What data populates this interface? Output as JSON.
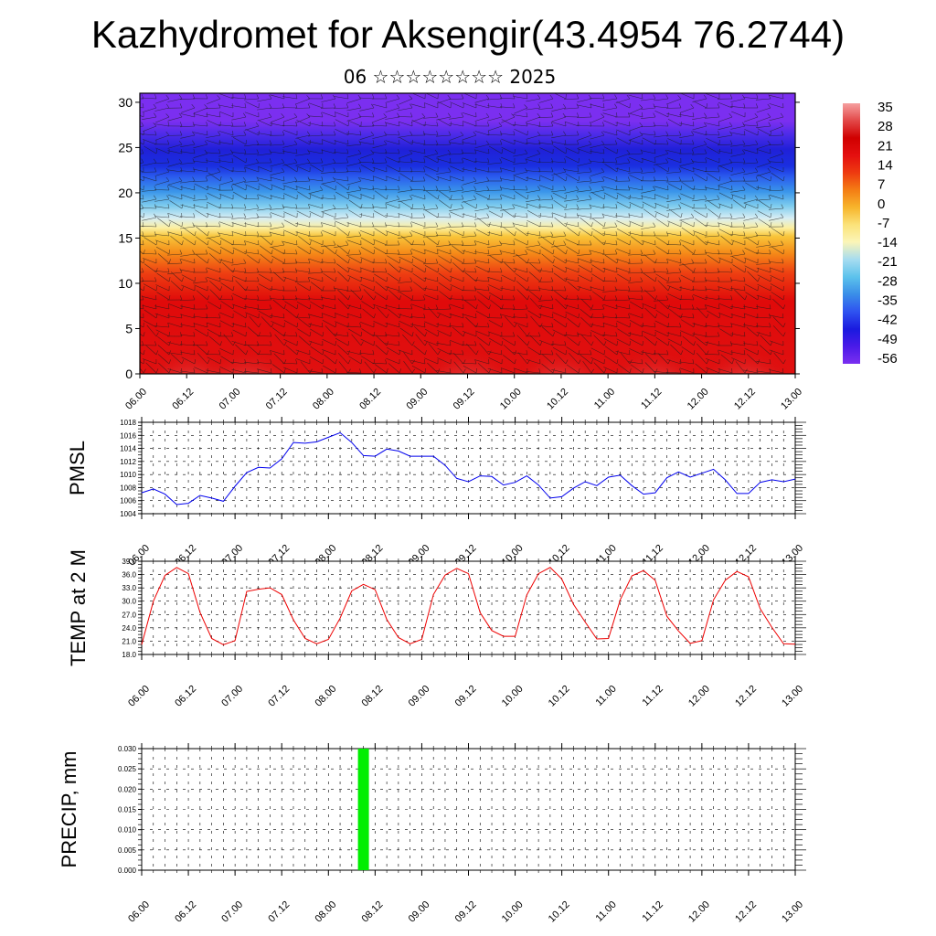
{
  "header": {
    "title": "Kazhydromet for Aksengir(43.4954 76.2744)",
    "subtitle": "06 ☆☆☆☆☆☆☆☆ 2025"
  },
  "time_ticks": [
    "06.00",
    "06.12",
    "07.00",
    "07.12",
    "08.00",
    "08.12",
    "09.00",
    "09.12",
    "10.00",
    "10.12",
    "11.00",
    "11.12",
    "12.00",
    "12.12",
    "13.00"
  ],
  "colors": {
    "pmsl_line": "#0000ee",
    "temp_line": "#ee0000",
    "precip_bar": "#00ee00",
    "frame": "#000000"
  },
  "chart_data": [
    {
      "type": "heatmap",
      "name": "upper-air-cross-section",
      "xlabel": "",
      "ylabel": "",
      "y_ticks": [
        0,
        5,
        10,
        15,
        20,
        25,
        30
      ],
      "ylim": [
        0,
        31
      ],
      "colorbar_labels": [
        "35",
        "28",
        "21",
        "14",
        "7",
        "0",
        "-7",
        "-14",
        "-21",
        "-28",
        "-35",
        "-42",
        "-49",
        "-56"
      ],
      "colorbar_range": [
        -60,
        38
      ],
      "colorbar_colors": [
        "#7b2ff0",
        "#4a1ae8",
        "#1a1adf",
        "#2f52f0",
        "#3a8ee8",
        "#5cc2ec",
        "#a6dcf0",
        "#fbf5b8",
        "#fbe37a",
        "#f7b52c",
        "#f47d14",
        "#ee3b10",
        "#e40f0f",
        "#d00000",
        "#e24848",
        "#f6a0a0"
      ]
    },
    {
      "type": "line",
      "name": "PMSL",
      "ylabel": "PMSL",
      "ylim": [
        1004,
        1018
      ],
      "y_ticks": [
        "1004",
        "1006",
        "1008",
        "1010",
        "1012",
        "1014",
        "1016",
        "1018"
      ],
      "x_step_hours": 3,
      "values": [
        1007.2,
        1007.8,
        1007.0,
        1005.4,
        1005.6,
        1006.8,
        1006.4,
        1005.9,
        1008.2,
        1010.3,
        1011.1,
        1011.0,
        1012.4,
        1014.9,
        1014.8,
        1015.0,
        1015.7,
        1016.4,
        1014.9,
        1012.9,
        1012.8,
        1013.9,
        1013.6,
        1012.8,
        1012.8,
        1012.8,
        1011.4,
        1009.4,
        1008.9,
        1009.8,
        1009.7,
        1008.4,
        1008.8,
        1009.8,
        1008.4,
        1006.4,
        1006.6,
        1007.9,
        1008.9,
        1008.3,
        1009.6,
        1009.9,
        1008.3,
        1007.0,
        1007.2,
        1009.5,
        1010.4,
        1009.6,
        1010.2,
        1010.8,
        1009.2,
        1007.1,
        1007.1,
        1008.8,
        1009.2,
        1008.9,
        1009.3
      ]
    },
    {
      "type": "line",
      "name": "TEMP at 2 M",
      "ylabel": "TEMP at 2 M",
      "ylim": [
        18,
        39
      ],
      "y_ticks": [
        "18.0",
        "21.0",
        "24.0",
        "27.0",
        "30.0",
        "33.0",
        "36.0",
        "39.0"
      ],
      "x_step_hours": 3,
      "values": [
        20.2,
        30.0,
        35.8,
        37.6,
        36.2,
        27.5,
        21.6,
        20.2,
        21.1,
        32.2,
        32.7,
        33.0,
        31.5,
        25.8,
        21.6,
        20.4,
        21.4,
        26.2,
        32.3,
        33.8,
        32.6,
        25.9,
        21.8,
        20.4,
        21.4,
        31.5,
        35.9,
        37.4,
        36.2,
        27.4,
        23.4,
        22.1,
        22.1,
        31.4,
        36.2,
        37.6,
        35.0,
        29.3,
        25.3,
        21.5,
        21.6,
        30.3,
        35.7,
        36.9,
        34.7,
        26.6,
        23.3,
        20.5,
        21.1,
        30.3,
        34.7,
        36.7,
        35.5,
        28.3,
        24.1,
        20.4,
        20.3
      ]
    },
    {
      "type": "bar",
      "name": "PRECIP",
      "ylabel": "PRECIP, mm",
      "ylim": [
        0,
        0.03
      ],
      "y_ticks": [
        "0.000",
        "0.005",
        "0.010",
        "0.015",
        "0.020",
        "0.025",
        "0.030"
      ],
      "bars": [
        {
          "x_hours": 57,
          "value": 0.03
        }
      ]
    }
  ]
}
